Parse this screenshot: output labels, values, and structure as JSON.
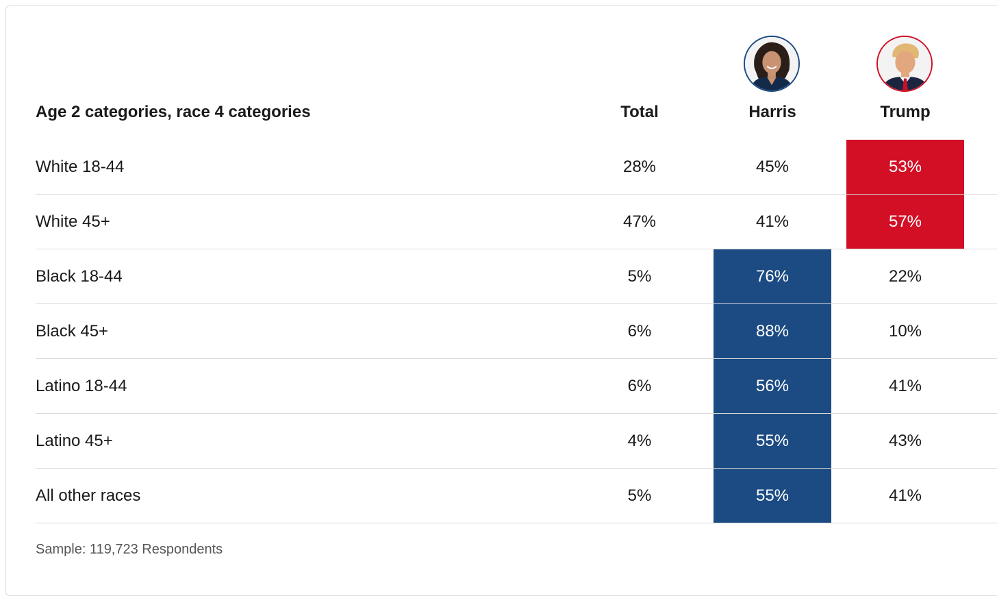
{
  "colors": {
    "harris": "#1b4b82",
    "trump": "#d20f25",
    "divider": "#d9d9d9"
  },
  "icons": {
    "harris_photo": "harris-avatar-icon",
    "trump_photo": "trump-avatar-icon"
  },
  "chart_data": {
    "type": "table",
    "row_header": "Age 2 categories, race 4 categories",
    "columns": [
      "Total",
      "Harris",
      "Trump"
    ],
    "rows": [
      {
        "label": "White 18-44",
        "total": "28%",
        "harris": "45%",
        "trump": "53%",
        "winner": "trump"
      },
      {
        "label": "White 45+",
        "total": "47%",
        "harris": "41%",
        "trump": "57%",
        "winner": "trump"
      },
      {
        "label": "Black 18-44",
        "total": "5%",
        "harris": "76%",
        "trump": "22%",
        "winner": "harris"
      },
      {
        "label": "Black 45+",
        "total": "6%",
        "harris": "88%",
        "trump": "10%",
        "winner": "harris"
      },
      {
        "label": "Latino 18-44",
        "total": "6%",
        "harris": "56%",
        "trump": "41%",
        "winner": "harris"
      },
      {
        "label": "Latino 45+",
        "total": "4%",
        "harris": "55%",
        "trump": "43%",
        "winner": "harris"
      },
      {
        "label": "All other races",
        "total": "5%",
        "harris": "55%",
        "trump": "41%",
        "winner": "harris"
      }
    ],
    "note": "Sample: 119,723 Respondents"
  }
}
